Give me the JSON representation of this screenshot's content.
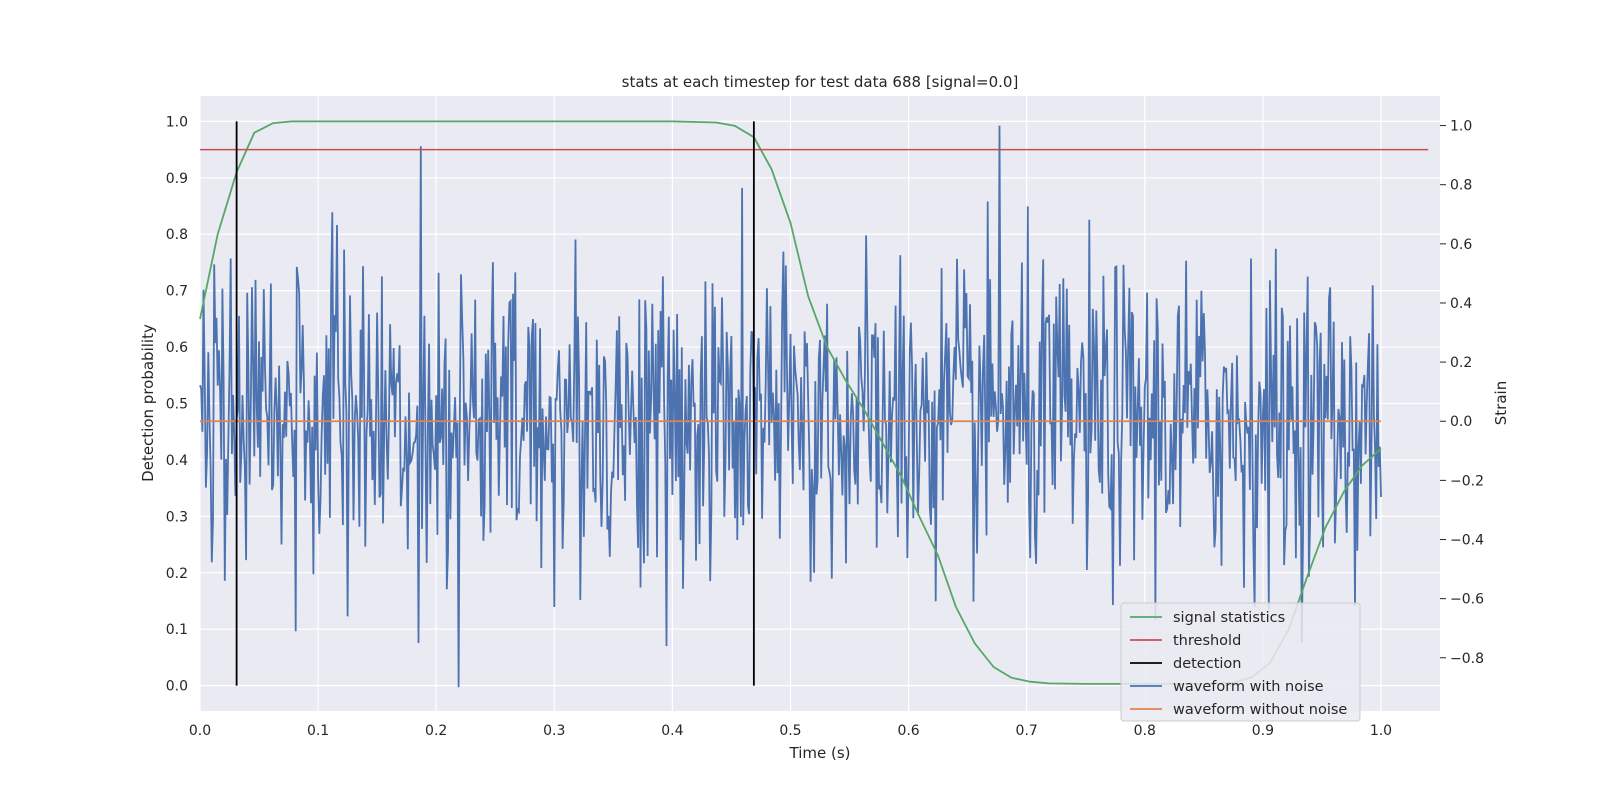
{
  "chart_data": {
    "type": "line",
    "title": "stats at each timestep for test data 688 [signal=0.0]",
    "xlabel": "Time (s)",
    "ylabel_left": "Detection probability",
    "ylabel_right": "Strain",
    "xlim": [
      0.0,
      1.05
    ],
    "ylim_left": [
      -0.045,
      1.045
    ],
    "ylim_right": [
      -0.98,
      1.1
    ],
    "xticks": [
      "0.0",
      "0.1",
      "0.2",
      "0.3",
      "0.4",
      "0.5",
      "0.6",
      "0.7",
      "0.8",
      "0.9",
      "1.0"
    ],
    "yticks_left": [
      "0.0",
      "0.1",
      "0.2",
      "0.3",
      "0.4",
      "0.5",
      "0.6",
      "0.7",
      "0.8",
      "0.9",
      "1.0"
    ],
    "yticks_right": [
      "−0.8",
      "−0.6",
      "−0.4",
      "−0.2",
      "0.0",
      "0.2",
      "0.4",
      "0.6",
      "0.8",
      "1.0"
    ],
    "legend_position": "lower-right",
    "grid": true,
    "colors": {
      "background": "#eaeaf2",
      "grid": "#ffffff",
      "signal_statistics": "#55a868",
      "threshold": "#c44e52",
      "detection": "#000000",
      "waveform_with_noise": "#4c72b0",
      "waveform_without_noise": "#dd8452"
    },
    "series": [
      {
        "name": "signal statistics",
        "axis": "left",
        "x": [
          0.0,
          0.015,
          0.031,
          0.046,
          0.062,
          0.078,
          0.1,
          0.2,
          0.3,
          0.4,
          0.437,
          0.453,
          0.469,
          0.484,
          0.5,
          0.515,
          0.531,
          0.547,
          0.562,
          0.578,
          0.594,
          0.609,
          0.625,
          0.64,
          0.656,
          0.672,
          0.687,
          0.703,
          0.719,
          0.75,
          0.8,
          0.85,
          0.875,
          0.891,
          0.906,
          0.922,
          0.937,
          0.953,
          0.969,
          0.984,
          1.0
        ],
        "y": [
          0.65,
          0.8,
          0.91,
          0.98,
          0.997,
          1.0,
          1.0,
          1.0,
          1.0,
          1.0,
          0.998,
          0.992,
          0.972,
          0.915,
          0.82,
          0.69,
          0.6,
          0.54,
          0.49,
          0.43,
          0.37,
          0.3,
          0.23,
          0.14,
          0.075,
          0.033,
          0.014,
          0.007,
          0.004,
          0.003,
          0.003,
          0.003,
          0.005,
          0.015,
          0.04,
          0.1,
          0.19,
          0.28,
          0.345,
          0.39,
          0.42
        ]
      },
      {
        "name": "threshold",
        "axis": "left",
        "x": [
          0.0,
          1.04
        ],
        "y": [
          0.95,
          0.95
        ]
      },
      {
        "name": "detection",
        "axis": "left",
        "x_positions": [
          0.031,
          0.469
        ],
        "y_range": [
          0.0,
          1.0
        ]
      },
      {
        "name": "waveform with noise",
        "axis": "right",
        "x_range": [
          0.0,
          1.0
        ],
        "samples": 1000,
        "description_values": "noise",
        "y_range": [
          -0.9,
          1.0
        ],
        "peaks": [
          [
            0.187,
            0.93
          ],
          [
            0.677,
            1.0
          ],
          [
            0.219,
            -0.9
          ],
          [
            0.395,
            -0.76
          ],
          [
            0.125,
            -0.66
          ]
        ]
      },
      {
        "name": "waveform without noise",
        "axis": "right",
        "x": [
          0.0,
          1.0
        ],
        "y": [
          0.0,
          0.0
        ]
      }
    ]
  }
}
